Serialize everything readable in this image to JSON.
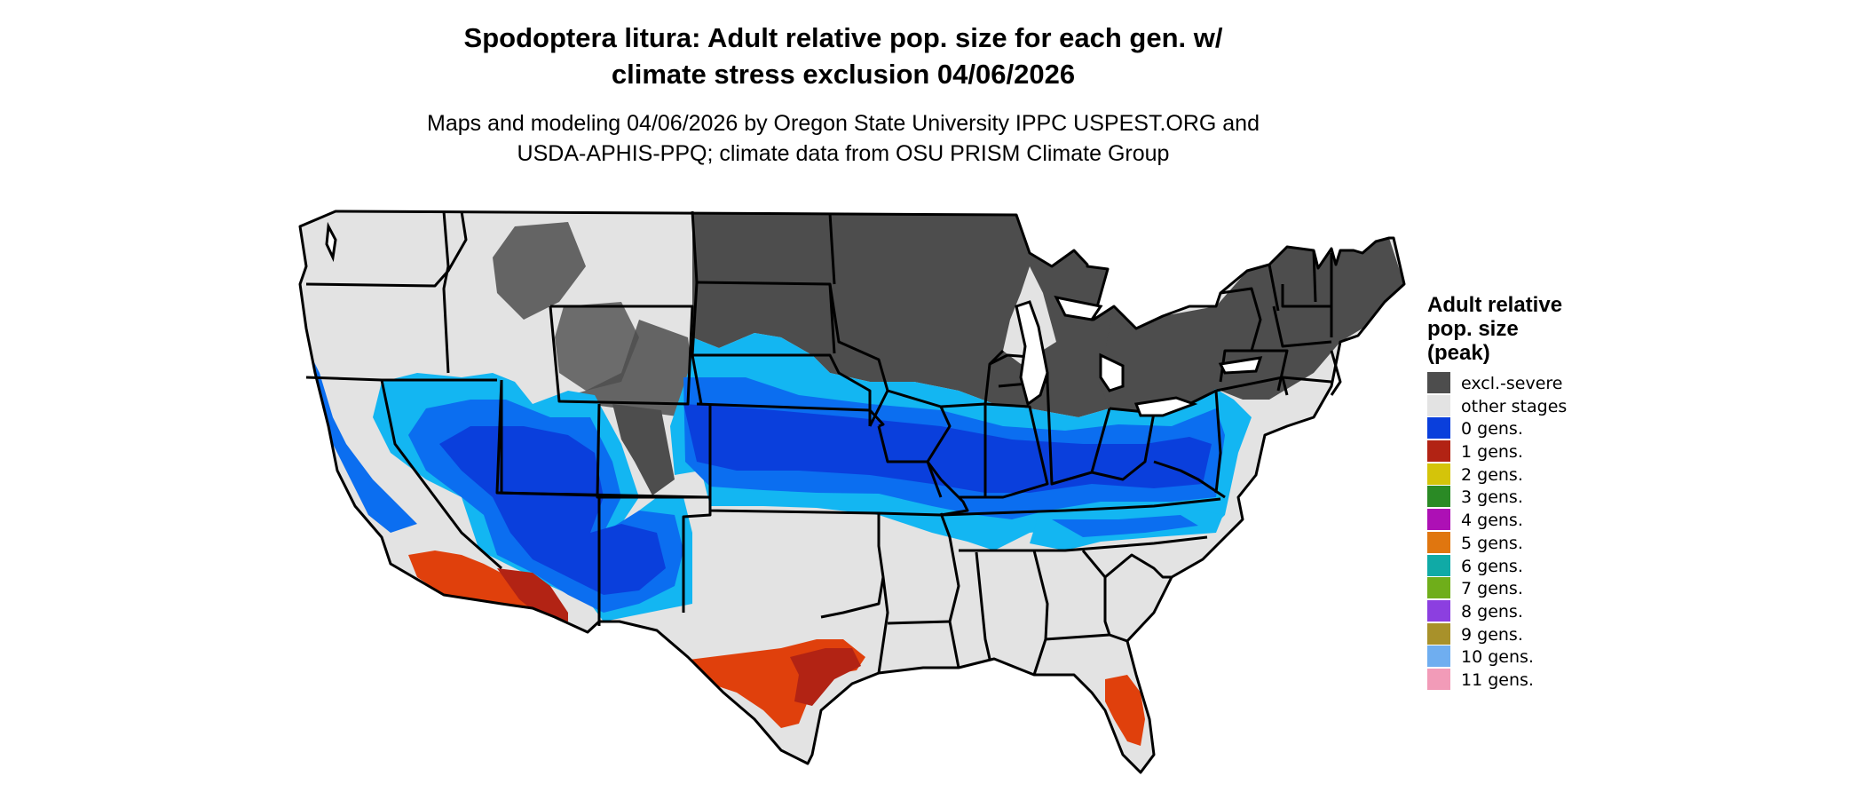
{
  "title": {
    "line1": "Spodoptera litura: Adult relative pop. size for each gen. w/",
    "line2": "climate stress exclusion 04/06/2026"
  },
  "subtitle": {
    "line1": "Maps and modeling 04/06/2026 by Oregon State University IPPC USPEST.ORG and",
    "line2": "USDA-APHIS-PPQ; climate data from OSU PRISM Climate Group"
  },
  "legend": {
    "title_lines": [
      "Adult relative",
      "pop. size",
      "(peak)"
    ],
    "items": [
      {
        "label": "excl.-severe",
        "color": "#4d4d4d"
      },
      {
        "label": "other stages",
        "color": "#e3e3e3"
      },
      {
        "label": "0 gens.",
        "color": "#0a3fdc"
      },
      {
        "label": "1 gens.",
        "color": "#b22314"
      },
      {
        "label": "2 gens.",
        "color": "#d4c40a"
      },
      {
        "label": "3 gens.",
        "color": "#2a8a25"
      },
      {
        "label": "4 gens.",
        "color": "#ad10b5"
      },
      {
        "label": "5 gens.",
        "color": "#e0760f"
      },
      {
        "label": "6 gens.",
        "color": "#10aaa6"
      },
      {
        "label": "7 gens.",
        "color": "#6fae1a"
      },
      {
        "label": "8 gens.",
        "color": "#8c3fe0"
      },
      {
        "label": "9 gens.",
        "color": "#a8912a"
      },
      {
        "label": "10 gens.",
        "color": "#6faef0"
      },
      {
        "label": "11 gens.",
        "color": "#f29bb8"
      }
    ]
  },
  "map_colors": {
    "background": "#e3e3e3",
    "excluded": "#4d4d4d",
    "blue_dark": "#0a3fdc",
    "blue_mid": "#0b6ef0",
    "blue_light": "#13b6f2",
    "red_orange": "#e0400c",
    "red_dark": "#b22314",
    "border": "#000000"
  }
}
